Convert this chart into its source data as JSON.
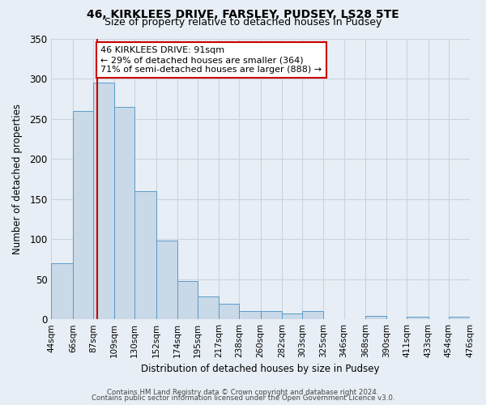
{
  "title": "46, KIRKLEES DRIVE, FARSLEY, PUDSEY, LS28 5TE",
  "subtitle": "Size of property relative to detached houses in Pudsey",
  "xlabel": "Distribution of detached houses by size in Pudsey",
  "ylabel": "Number of detached properties",
  "bar_edges": [
    44,
    66,
    87,
    109,
    130,
    152,
    174,
    195,
    217,
    238,
    260,
    282,
    303,
    325,
    346,
    368,
    390,
    411,
    433,
    454,
    476
  ],
  "bar_heights": [
    70,
    260,
    295,
    265,
    160,
    98,
    48,
    28,
    19,
    10,
    10,
    7,
    10,
    0,
    0,
    4,
    0,
    3,
    0,
    3
  ],
  "bar_color": "#c9d9e8",
  "bar_edge_color": "#5a9bc9",
  "ylim": [
    0,
    350
  ],
  "yticks": [
    0,
    50,
    100,
    150,
    200,
    250,
    300,
    350
  ],
  "property_line_x": 91,
  "property_line_color": "#cc0000",
  "annotation_line1": "46 KIRKLEES DRIVE: 91sqm",
  "annotation_line2": "← 29% of detached houses are smaller (364)",
  "annotation_line3": "71% of semi-detached houses are larger (888) →",
  "annotation_box_color": "#cc0000",
  "annotation_box_fill": "#ffffff",
  "grid_color": "#c8d4e0",
  "background_color": "#e8eef5",
  "footer_line1": "Contains HM Land Registry data © Crown copyright and database right 2024.",
  "footer_line2": "Contains public sector information licensed under the Open Government Licence v3.0.",
  "tick_labels": [
    "44sqm",
    "66sqm",
    "87sqm",
    "109sqm",
    "130sqm",
    "152sqm",
    "174sqm",
    "195sqm",
    "217sqm",
    "238sqm",
    "260sqm",
    "282sqm",
    "303sqm",
    "325sqm",
    "346sqm",
    "368sqm",
    "390sqm",
    "411sqm",
    "433sqm",
    "454sqm",
    "476sqm"
  ]
}
